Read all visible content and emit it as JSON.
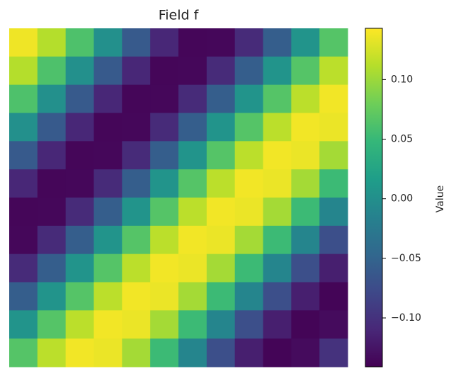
{
  "chart_data": {
    "type": "heatmap",
    "title": "Field f",
    "colorbar_label": "Value",
    "clim": [
      -0.141,
      0.143
    ],
    "cticks": [
      {
        "value": 0.1,
        "label": "0.10"
      },
      {
        "value": 0.05,
        "label": "0.05"
      },
      {
        "value": 0,
        "label": "0.00"
      },
      {
        "value": -0.05,
        "label": "−0.05"
      },
      {
        "value": -0.1,
        "label": "−0.10"
      }
    ],
    "colormap": "viridis",
    "z": [
      [
        0.137,
        0.111,
        0.062,
        0.001,
        -0.061,
        -0.11,
        -0.137,
        -0.136,
        -0.107,
        -0.057,
        0.005,
        0.066
      ],
      [
        0.111,
        0.062,
        0.001,
        -0.061,
        -0.11,
        -0.137,
        -0.136,
        -0.107,
        -0.057,
        0.005,
        0.066,
        0.114
      ],
      [
        0.062,
        0.001,
        -0.061,
        -0.11,
        -0.137,
        -0.136,
        -0.107,
        -0.057,
        0.005,
        0.066,
        0.114,
        0.138
      ],
      [
        0.001,
        -0.061,
        -0.11,
        -0.137,
        -0.136,
        -0.107,
        -0.057,
        0.005,
        0.066,
        0.114,
        0.138,
        0.135
      ],
      [
        -0.061,
        -0.11,
        -0.137,
        -0.136,
        -0.107,
        -0.057,
        0.005,
        0.066,
        0.114,
        0.138,
        0.135,
        0.104
      ],
      [
        -0.11,
        -0.137,
        -0.136,
        -0.107,
        -0.057,
        0.005,
        0.066,
        0.114,
        0.138,
        0.135,
        0.104,
        0.052
      ],
      [
        -0.137,
        -0.136,
        -0.107,
        -0.057,
        0.005,
        0.066,
        0.114,
        0.138,
        0.135,
        0.104,
        0.052,
        -0.011
      ],
      [
        -0.136,
        -0.107,
        -0.057,
        0.005,
        0.066,
        0.114,
        0.138,
        0.135,
        0.104,
        0.052,
        -0.011,
        -0.072
      ],
      [
        -0.107,
        -0.057,
        0.005,
        0.066,
        0.114,
        0.138,
        0.135,
        0.104,
        0.052,
        -0.011,
        -0.072,
        -0.117
      ],
      [
        -0.057,
        0.005,
        0.066,
        0.114,
        0.138,
        0.135,
        0.104,
        0.052,
        -0.011,
        -0.072,
        -0.117,
        -0.138
      ],
      [
        0.005,
        0.066,
        0.114,
        0.138,
        0.135,
        0.104,
        0.052,
        -0.011,
        -0.072,
        -0.117,
        -0.138,
        -0.133
      ],
      [
        0.066,
        0.114,
        0.138,
        0.135,
        0.104,
        0.052,
        -0.011,
        -0.072,
        -0.117,
        -0.138,
        -0.133,
        -0.1
      ]
    ]
  }
}
